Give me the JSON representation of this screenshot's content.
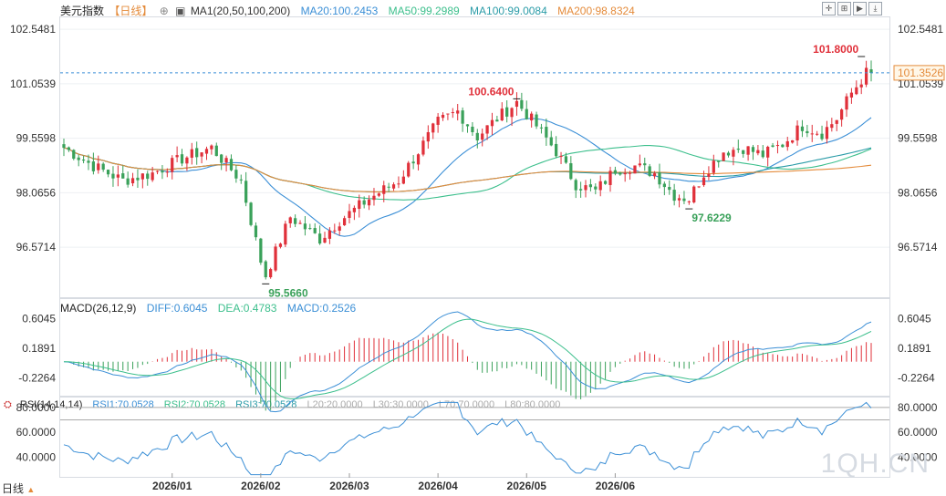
{
  "header": {
    "symbol": "美元指数",
    "period": "【日线】",
    "ma_label": "MA1(20,50,100,200)",
    "ma20": "MA20:100.2453",
    "ma50": "MA50:99.2989",
    "ma100": "MA100:99.0084",
    "ma200": "MA200:98.8324"
  },
  "colors": {
    "up": "#e0303a",
    "down": "#3aa15a",
    "ma20": "#3b8fd6",
    "ma50": "#3cbf8c",
    "ma100": "#2b9ca8",
    "ma200": "#e48b3b",
    "diff": "#3b8fd6",
    "dea": "#3cbf8c",
    "rsi": "#3b8fd6"
  },
  "macd": {
    "label": "MACD(26,12,9)",
    "diff": "DIFF:0.6045",
    "dea": "DEA:0.4783",
    "macd": "MACD:0.2526"
  },
  "rsi": {
    "label": "RSI(14,14,14)",
    "rsi1": "RSI1:70.0528",
    "rsi2": "RSI2:70.0528",
    "rsi3": "RSI3:70.0528",
    "l20": "L20:20.0000",
    "l30": "L30:30.0000",
    "l70": "L70:70.0000",
    "l80": "L80:80.0000"
  },
  "footer": {
    "period_button": "日线"
  },
  "watermark": "1QH.CN",
  "chart_data": {
    "type": "candlestick",
    "price_axis_ticks": [
      "102.5481",
      "101.0539",
      "99.5598",
      "98.0656",
      "96.5714"
    ],
    "price_ylim": [
      95.2,
      102.9
    ],
    "last_price": "101.3526",
    "macd_axis_ticks": [
      "0.6045",
      "0.1891",
      "-0.2264"
    ],
    "rsi_axis_ticks": [
      "80.0000",
      "60.0000",
      "40.0000"
    ],
    "x_ticks": [
      "2026/01",
      "2026/02",
      "2026/03",
      "2026/04",
      "2026/05",
      "2026/06"
    ],
    "annotations": [
      {
        "text": "101.8000",
        "value": 101.8,
        "kind": "high"
      },
      {
        "text": "100.6400",
        "value": 100.64,
        "kind": "high"
      },
      {
        "text": "95.5660",
        "value": 95.566,
        "kind": "low"
      },
      {
        "text": "97.6229",
        "value": 97.6229,
        "kind": "low"
      }
    ],
    "anchors": [
      [
        0,
        99.3
      ],
      [
        6,
        98.8
      ],
      [
        12,
        98.4
      ],
      [
        18,
        98.6
      ],
      [
        24,
        99.0
      ],
      [
        30,
        99.3
      ],
      [
        36,
        98.4
      ],
      [
        40,
        96.2
      ],
      [
        41,
        95.8
      ],
      [
        46,
        97.4
      ],
      [
        52,
        96.8
      ],
      [
        56,
        97.3
      ],
      [
        62,
        97.9
      ],
      [
        68,
        98.4
      ],
      [
        72,
        99.2
      ],
      [
        76,
        100.0
      ],
      [
        80,
        100.3
      ],
      [
        84,
        99.6
      ],
      [
        88,
        100.1
      ],
      [
        92,
        100.55
      ],
      [
        96,
        99.9
      ],
      [
        100,
        99.2
      ],
      [
        104,
        98.3
      ],
      [
        108,
        98.1
      ],
      [
        112,
        98.7
      ],
      [
        116,
        98.8
      ],
      [
        120,
        98.6
      ],
      [
        124,
        98.0
      ],
      [
        127,
        97.9
      ],
      [
        130,
        98.6
      ],
      [
        134,
        99.2
      ],
      [
        138,
        99.3
      ],
      [
        142,
        99.1
      ],
      [
        146,
        99.4
      ],
      [
        150,
        99.9
      ],
      [
        154,
        99.7
      ],
      [
        157,
        100.1
      ],
      [
        160,
        100.8
      ],
      [
        163,
        101.35
      ],
      [
        164,
        101.35
      ]
    ],
    "x_tick_index": [
      22,
      40,
      58,
      76,
      94,
      112
    ]
  }
}
